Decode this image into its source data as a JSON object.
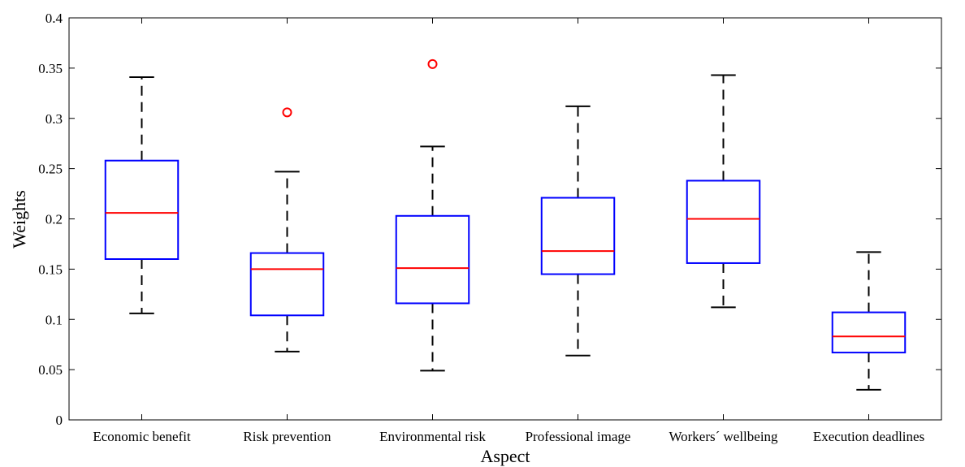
{
  "chart_data": {
    "type": "box",
    "xlabel": "Aspect",
    "ylabel": "Weights",
    "ylim": [
      0,
      0.4
    ],
    "yticks": [
      0,
      0.05,
      0.1,
      0.15,
      0.2,
      0.25,
      0.3,
      0.35,
      0.4
    ],
    "ytick_labels": [
      "0",
      "0.05",
      "0.1",
      "0.15",
      "0.2",
      "0.25",
      "0.3",
      "0.35",
      "0.4"
    ],
    "grid": false,
    "categories": [
      "Economic benefit",
      "Risk prevention",
      "Environmental risk",
      "Professional image",
      "Workers´ wellbeing",
      "Execution deadlines"
    ],
    "boxes": [
      {
        "category": "Economic benefit",
        "whisker_low": 0.106,
        "q1": 0.16,
        "median": 0.206,
        "q3": 0.258,
        "whisker_high": 0.341,
        "outliers": []
      },
      {
        "category": "Risk prevention",
        "whisker_low": 0.068,
        "q1": 0.104,
        "median": 0.15,
        "q3": 0.166,
        "whisker_high": 0.247,
        "outliers": [
          0.306
        ]
      },
      {
        "category": "Environmental risk",
        "whisker_low": 0.049,
        "q1": 0.116,
        "median": 0.151,
        "q3": 0.203,
        "whisker_high": 0.272,
        "outliers": [
          0.354
        ]
      },
      {
        "category": "Professional image",
        "whisker_low": 0.064,
        "q1": 0.145,
        "median": 0.168,
        "q3": 0.221,
        "whisker_high": 0.312,
        "outliers": []
      },
      {
        "category": "Workers´ wellbeing",
        "whisker_low": 0.112,
        "q1": 0.156,
        "median": 0.2,
        "q3": 0.238,
        "whisker_high": 0.343,
        "outliers": []
      },
      {
        "category": "Execution deadlines",
        "whisker_low": 0.03,
        "q1": 0.067,
        "median": 0.083,
        "q3": 0.107,
        "whisker_high": 0.167,
        "outliers": []
      }
    ],
    "colors": {
      "box": "#0000ff",
      "median": "#ff0000",
      "whisker": "#000000",
      "outlier": "#ff0000",
      "axis": "#000000"
    }
  }
}
